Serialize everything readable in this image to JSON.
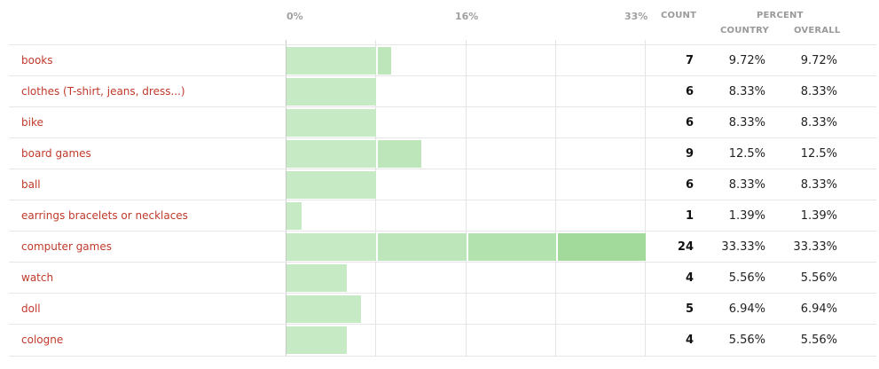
{
  "chart_data": {
    "type": "bar",
    "orientation": "horizontal",
    "xaxis_ticks": [
      "0%",
      "16%",
      "33%"
    ],
    "xlim": [
      0,
      33.33
    ],
    "columns": {
      "count": "COUNT",
      "percent": "PERCENT",
      "country": "COUNTRY",
      "overall": "OVERALL"
    },
    "categories": [
      "books",
      "clothes (T-shirt, jeans, dress...)",
      "bike",
      "board games",
      "ball",
      "earrings bracelets or necklaces",
      "computer games",
      "watch",
      "doll",
      "cologne"
    ],
    "counts": [
      "7",
      "6",
      "6",
      "9",
      "6",
      "1",
      "24",
      "4",
      "5",
      "4"
    ],
    "values": [
      9.72,
      8.33,
      8.33,
      12.5,
      8.33,
      1.39,
      33.33,
      5.56,
      6.94,
      5.56
    ],
    "country_pct": [
      "9.72%",
      "8.33%",
      "8.33%",
      "12.5%",
      "8.33%",
      "1.39%",
      "33.33%",
      "5.56%",
      "6.94%",
      "5.56%"
    ],
    "overall_pct": [
      "9.72%",
      "8.33%",
      "8.33%",
      "12.5%",
      "8.33%",
      "1.39%",
      "33.33%",
      "5.56%",
      "6.94%",
      "5.56%"
    ],
    "bar_colors": [
      "#c6ebc4",
      "#bde6ba",
      "#b2e2ae",
      "#a2da9c"
    ]
  }
}
